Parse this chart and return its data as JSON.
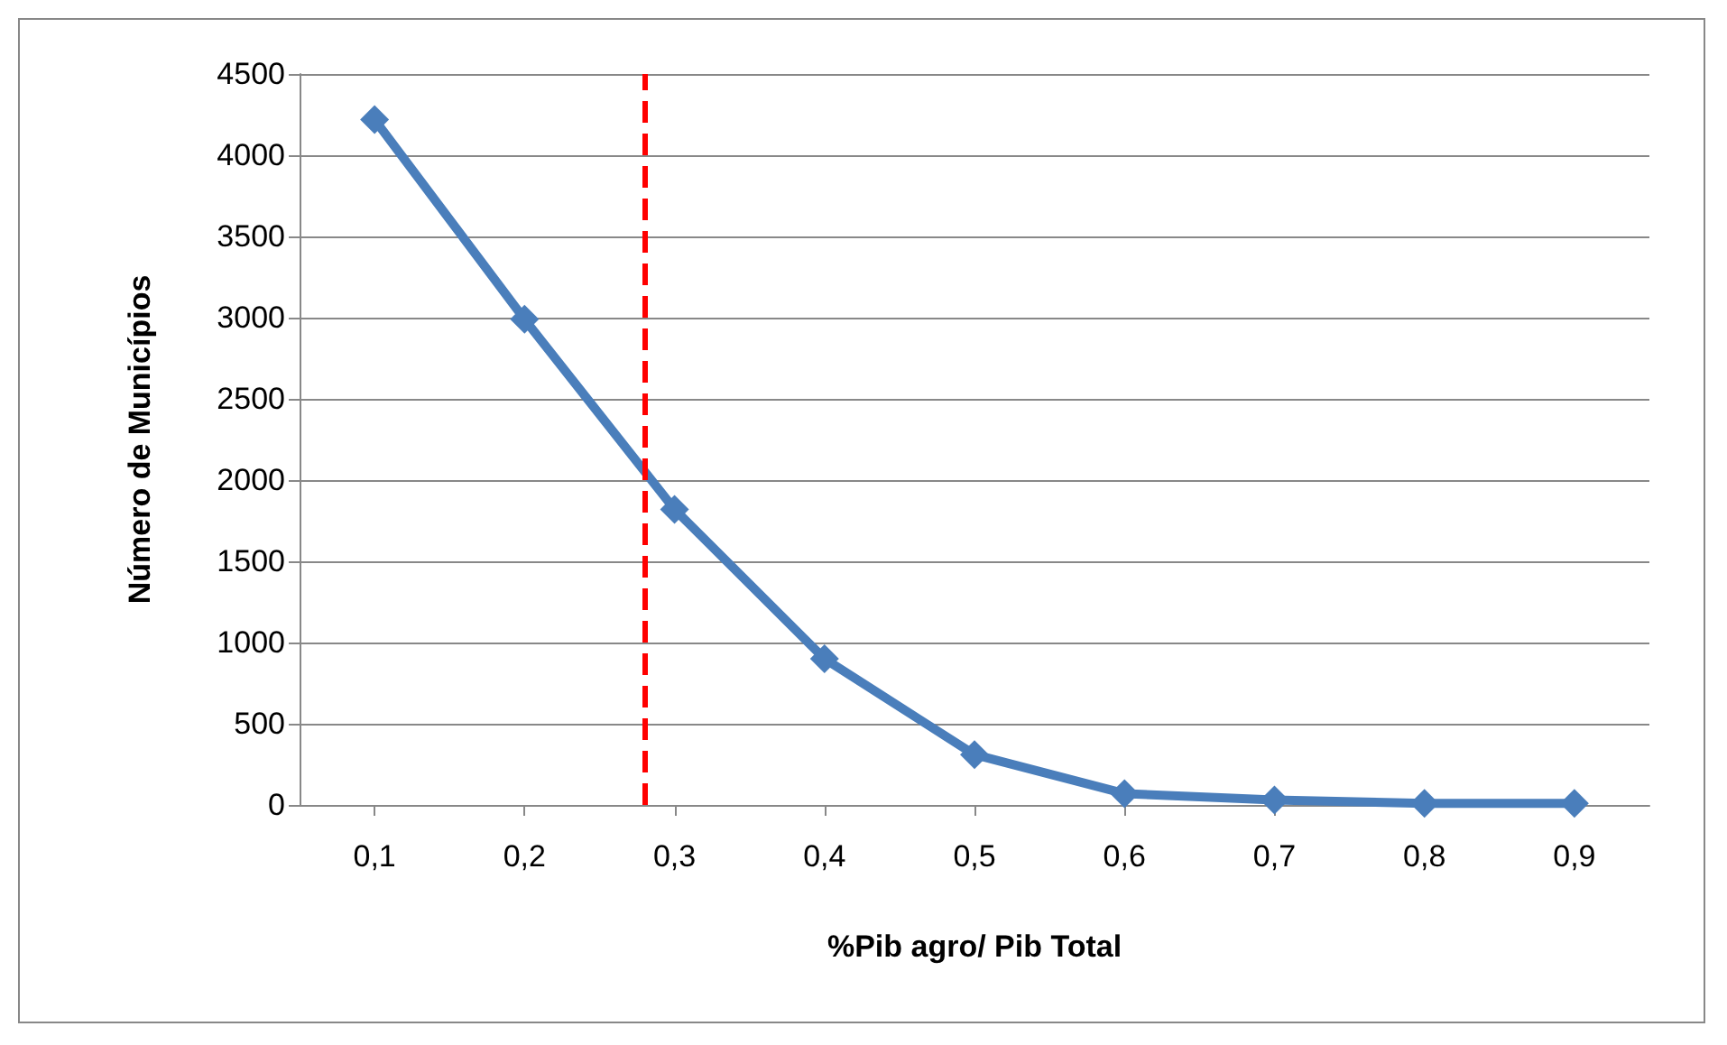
{
  "chart_data": {
    "type": "line",
    "xlabel": "%Pib agro/ Pib Total",
    "ylabel": "Número de Municípios",
    "x": [
      0.1,
      0.2,
      0.3,
      0.4,
      0.5,
      0.6,
      0.7,
      0.8,
      0.9
    ],
    "series": [
      {
        "color": "#4a7ebb",
        "values": [
          4220,
          2990,
          1820,
          900,
          310,
          70,
          30,
          10,
          10
        ]
      }
    ],
    "xlim": [
      0.05,
      0.95
    ],
    "xticks": [
      {
        "value": 0.1,
        "label": "0,1"
      },
      {
        "value": 0.2,
        "label": "0,2"
      },
      {
        "value": 0.3,
        "label": "0,3"
      },
      {
        "value": 0.4,
        "label": "0,4"
      },
      {
        "value": 0.5,
        "label": "0,5"
      },
      {
        "value": 0.6,
        "label": "0,6"
      },
      {
        "value": 0.7,
        "label": "0,7"
      },
      {
        "value": 0.8,
        "label": "0,8"
      },
      {
        "value": 0.9,
        "label": "0,9"
      }
    ],
    "ylim": [
      0,
      4500
    ],
    "yticks": [
      0,
      500,
      1000,
      1500,
      2000,
      2500,
      3000,
      3500,
      4000,
      4500
    ],
    "ref_lines": [
      {
        "axis": "x",
        "value": 0.28,
        "color": "#ff0000",
        "line_style": "dashed"
      }
    ],
    "grid": "y",
    "marker": "diamond",
    "line_style": "solid"
  }
}
